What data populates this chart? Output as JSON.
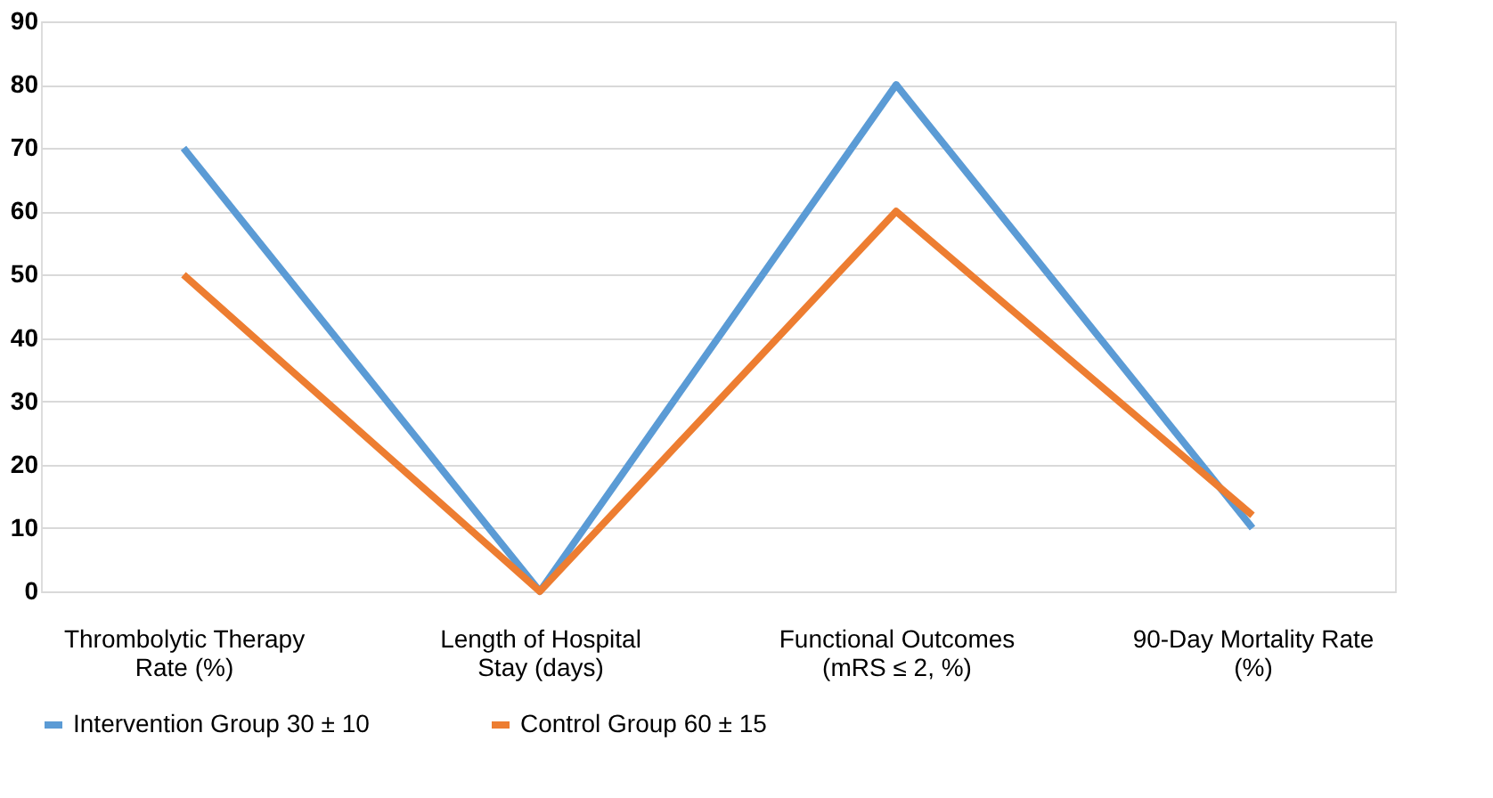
{
  "chart_data": {
    "type": "line",
    "categories": [
      "Thrombolytic Therapy Rate (%)",
      "Length of Hospital Stay (days)",
      "Functional Outcomes (mRS ≤ 2, %)",
      "90-Day Mortality Rate (%)"
    ],
    "series": [
      {
        "name": "Intervention Group 30 ± 10",
        "color": "#5b9bd5",
        "values": [
          70,
          0,
          80,
          10
        ]
      },
      {
        "name": "Control Group 60 ± 15",
        "color": "#ed7d31",
        "values": [
          50,
          0,
          60,
          12
        ]
      }
    ],
    "ylim": [
      0,
      90
    ],
    "yticks": [
      0,
      10,
      20,
      30,
      40,
      50,
      60,
      70,
      80,
      90
    ],
    "grid": "y",
    "legend": "bottom",
    "marker": "none",
    "line_style": "solid"
  }
}
